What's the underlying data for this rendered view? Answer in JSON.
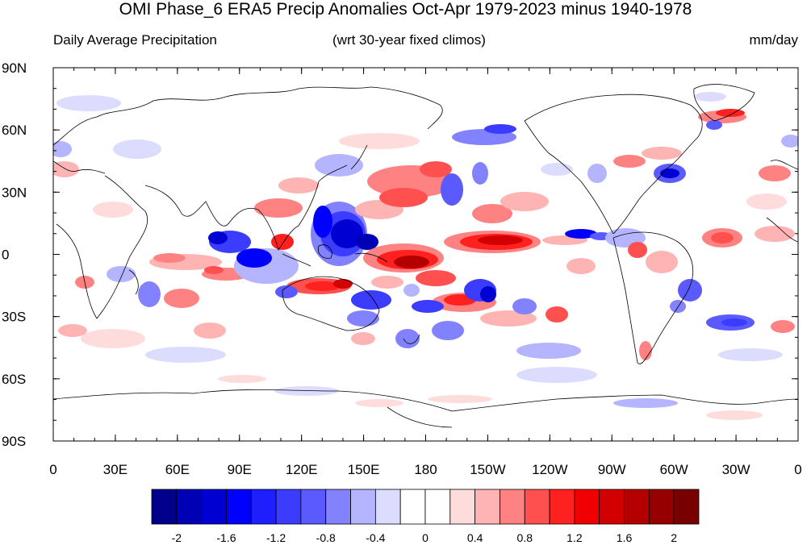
{
  "title": "OMI Phase_6 ERA5 Precip Anomalies Oct-Apr 1979-2023 minus 1940-1978",
  "subtitle_left": "Daily Average Precipitation",
  "subtitle_center": "(wrt 30-year fixed climos)",
  "subtitle_right": "mm/day",
  "lat_ticks": [
    "90N",
    "60N",
    "30N",
    "0",
    "30S",
    "60S",
    "90S"
  ],
  "lon_ticks": [
    "0",
    "30E",
    "60E",
    "90E",
    "120E",
    "150E",
    "180",
    "150W",
    "120W",
    "90W",
    "60W",
    "30W",
    "0"
  ],
  "colorbar": {
    "colors": [
      "#00008c",
      "#0000b4",
      "#0000d2",
      "#0000ff",
      "#1e1eff",
      "#3c3cff",
      "#5a5aff",
      "#8282ff",
      "#b4b4ff",
      "#dcdcff",
      "#ffffff",
      "#ffffff",
      "#ffdcdc",
      "#ffb4b4",
      "#ff8282",
      "#ff5050",
      "#ff2020",
      "#f00000",
      "#d20000",
      "#b40000",
      "#960000",
      "#780000"
    ],
    "tick_labels": [
      "-2",
      "-1.6",
      "-1.2",
      "-0.8",
      "-0.4",
      "0",
      "0.4",
      "0.8",
      "1.2",
      "1.6",
      "2"
    ]
  }
}
